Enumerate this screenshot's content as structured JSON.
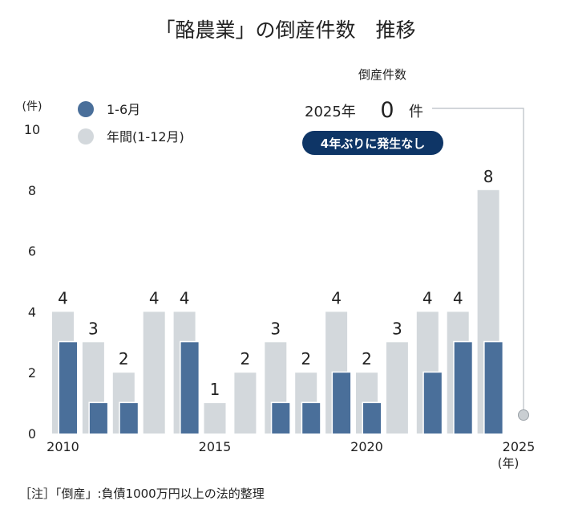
{
  "chart_data": {
    "type": "bar",
    "title": "「酪農業」の倒産件数　推移",
    "y_unit_label": "(件)",
    "x_unit_label": "(年)",
    "ylim": [
      0,
      10
    ],
    "y_ticks": [
      0,
      2,
      4,
      6,
      8,
      10
    ],
    "x_tick_labels": [
      "2010",
      "2015",
      "2020",
      "2025"
    ],
    "categories": [
      "2010",
      "2011",
      "2012",
      "2013",
      "2014",
      "2015",
      "2016",
      "2017",
      "2018",
      "2019",
      "2020",
      "2021",
      "2022",
      "2023",
      "2024",
      "2025"
    ],
    "series": [
      {
        "name": "1-6月",
        "color": "#4a6f9a",
        "values": [
          3,
          1,
          1,
          0,
          3,
          0,
          0,
          1,
          1,
          2,
          1,
          0,
          2,
          3,
          3,
          0
        ]
      },
      {
        "name": "年間(1-12月)",
        "color": "#d3d8dc",
        "values": [
          4,
          3,
          2,
          4,
          4,
          1,
          2,
          3,
          2,
          4,
          2,
          3,
          4,
          4,
          8,
          null
        ]
      }
    ],
    "data_labels": [
      "4",
      "3",
      "2",
      "4",
      "4",
      "1",
      "2",
      "3",
      "2",
      "4",
      "2",
      "3",
      "4",
      "4",
      "8"
    ],
    "annotation": {
      "header": "倒産件数",
      "year_text": "2025年",
      "value": "0",
      "unit": "件",
      "badge": "4年ぶりに発生なし",
      "badge_color": "#0e3566",
      "marker_color": "#c9ced2"
    },
    "note": "［注］「倒産」:負債1000万円以上の法的整理"
  }
}
